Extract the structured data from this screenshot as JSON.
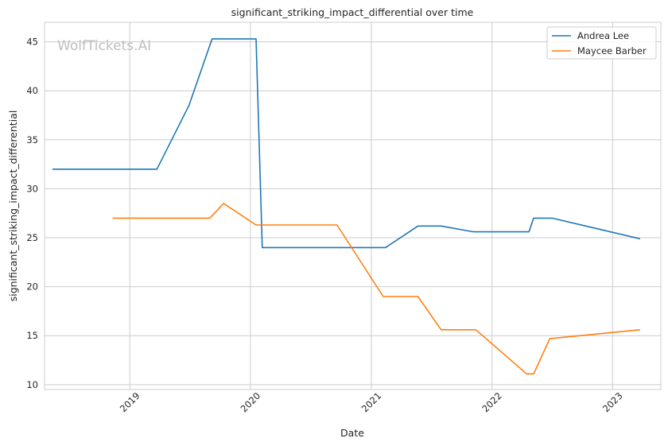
{
  "watermark": "WolfTickets.AI",
  "chart_data": {
    "type": "line",
    "title": "significant_striking_impact_differential over time",
    "xlabel": "Date",
    "ylabel": "significant_striking_impact_differential",
    "xlim": [
      "2018-04-18",
      "2023-05-27"
    ],
    "ylim": [
      9.5,
      47
    ],
    "x_ticks": [
      {
        "date": "2019-01-01",
        "label": "2019"
      },
      {
        "date": "2020-01-01",
        "label": "2020"
      },
      {
        "date": "2021-01-01",
        "label": "2021"
      },
      {
        "date": "2022-01-01",
        "label": "2022"
      },
      {
        "date": "2023-01-01",
        "label": "2023"
      }
    ],
    "y_ticks": [
      10,
      15,
      20,
      25,
      30,
      35,
      40,
      45
    ],
    "grid": true,
    "legend_position": "top-right",
    "series": [
      {
        "name": "Andrea Lee",
        "color": "#1f77b4",
        "points": [
          [
            "2018-05-12",
            32.0
          ],
          [
            "2019-03-24",
            32.0
          ],
          [
            "2019-06-29",
            38.5
          ],
          [
            "2019-09-07",
            45.3
          ],
          [
            "2020-01-18",
            45.3
          ],
          [
            "2020-02-06",
            24.0
          ],
          [
            "2021-02-13",
            24.0
          ],
          [
            "2021-05-22",
            26.2
          ],
          [
            "2021-07-31",
            26.2
          ],
          [
            "2021-11-06",
            25.6
          ],
          [
            "2022-04-23",
            25.6
          ],
          [
            "2022-05-07",
            27.0
          ],
          [
            "2022-07-02",
            27.0
          ],
          [
            "2023-03-25",
            24.9
          ]
        ]
      },
      {
        "name": "Maycee Barber",
        "color": "#ff7f0e",
        "points": [
          [
            "2018-11-10",
            27.0
          ],
          [
            "2019-08-31",
            27.0
          ],
          [
            "2019-10-12",
            28.5
          ],
          [
            "2020-01-18",
            26.3
          ],
          [
            "2020-09-19",
            26.3
          ],
          [
            "2021-02-06",
            19.0
          ],
          [
            "2021-05-22",
            19.0
          ],
          [
            "2021-07-31",
            15.6
          ],
          [
            "2021-11-13",
            15.6
          ],
          [
            "2022-04-16",
            11.1
          ],
          [
            "2022-05-07",
            11.1
          ],
          [
            "2022-06-25",
            14.7
          ],
          [
            "2023-03-25",
            15.6
          ]
        ]
      }
    ]
  }
}
